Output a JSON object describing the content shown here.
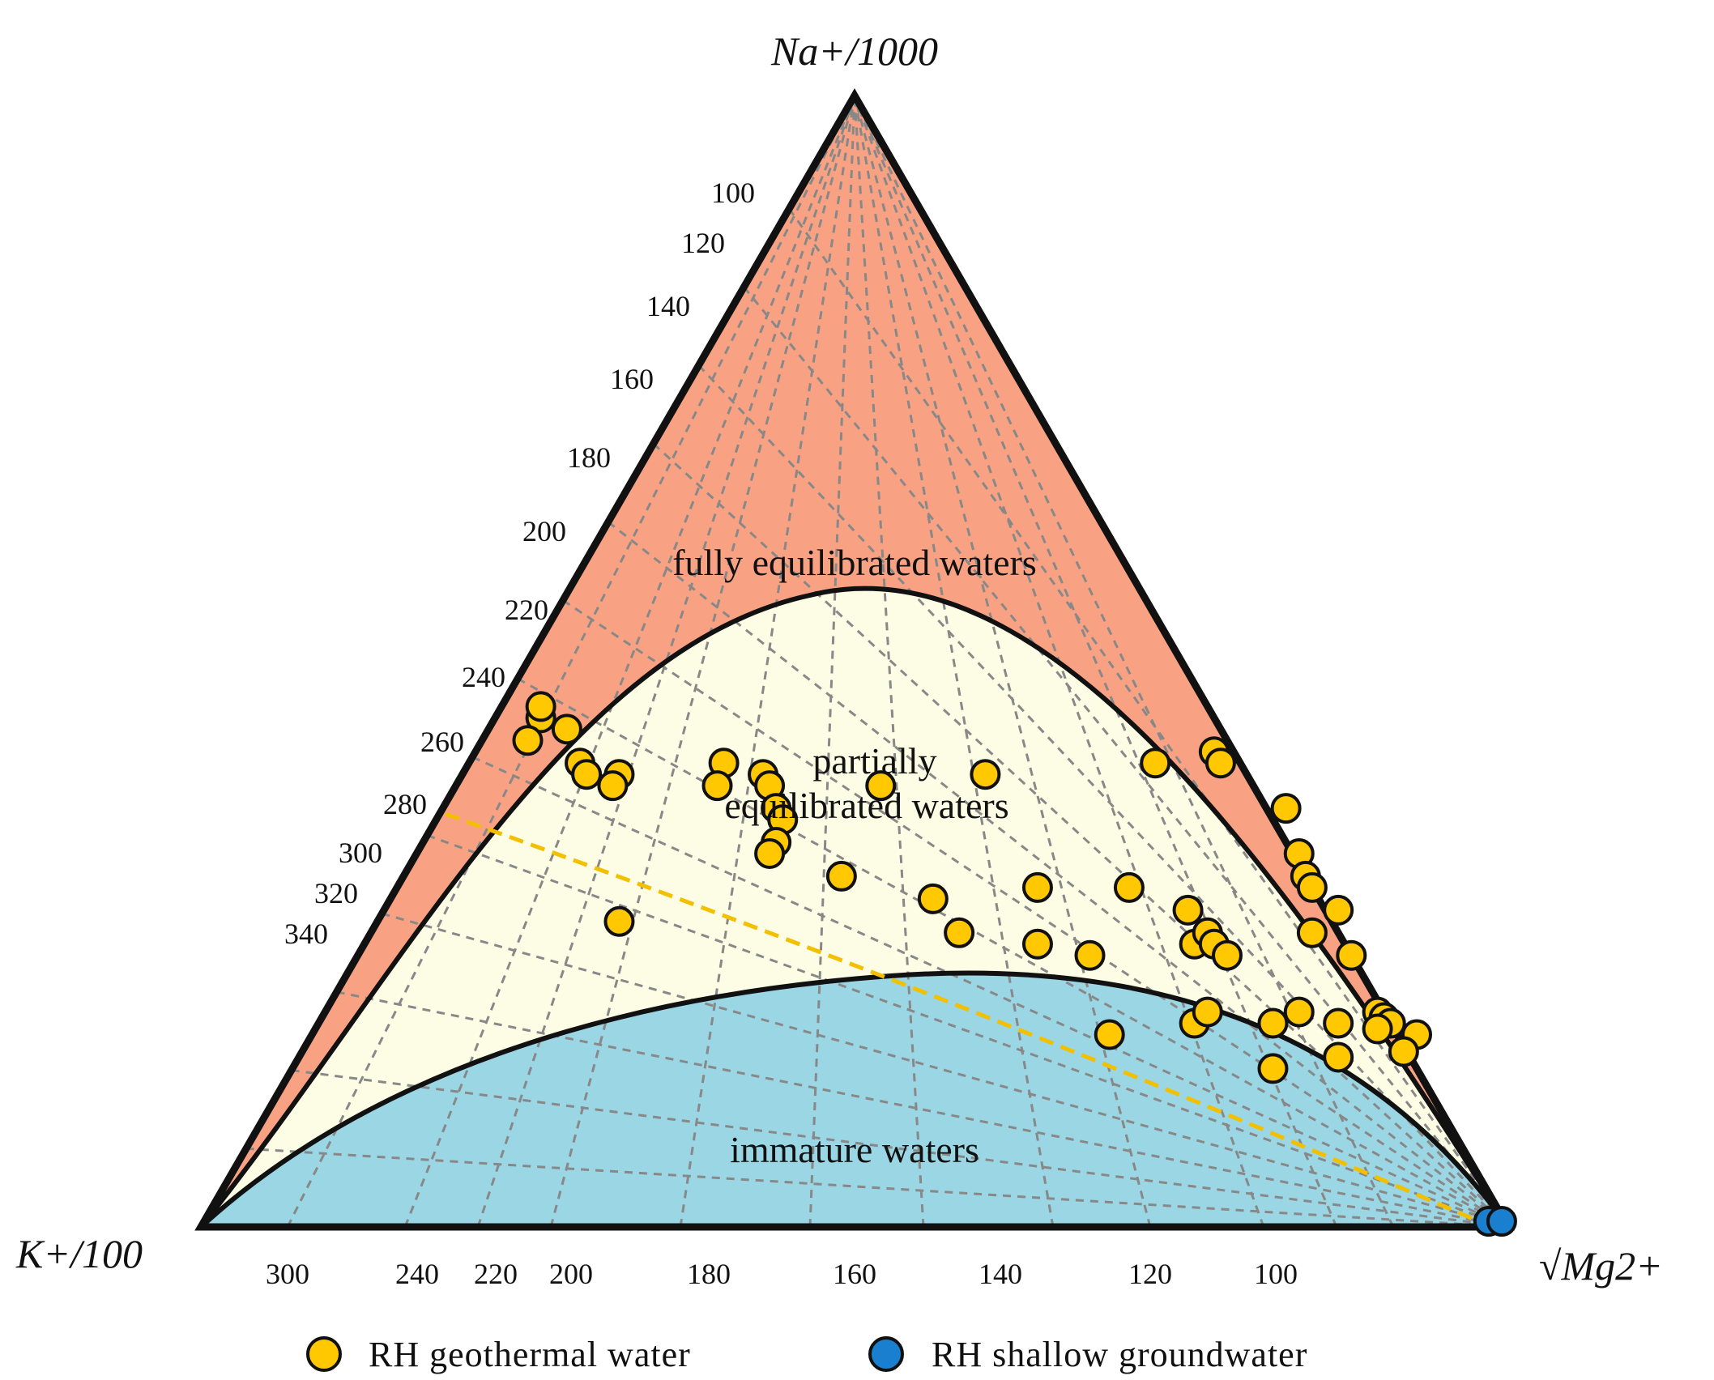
{
  "chart_data": {
    "type": "scatter",
    "subtype": "ternary Giggenbach Na-K-Mg diagram",
    "apex_labels": {
      "top": "Na+/1000",
      "left": "K+/100",
      "right": "√Mg2+"
    },
    "regions": [
      {
        "name": "fully equilibrated waters",
        "color": "#f8a283"
      },
      {
        "name": "partially equilibrated waters",
        "color": "#fdfde5"
      },
      {
        "name": "immature waters",
        "color": "#9ad6e4"
      }
    ],
    "left_edge_ticks": [
      "100",
      "120",
      "140",
      "160",
      "180",
      "200",
      "220",
      "240",
      "260",
      "280",
      "300",
      "320",
      "340"
    ],
    "bottom_edge_ticks": [
      "300",
      "240",
      "220",
      "200",
      "180",
      "160",
      "140",
      "120",
      "100"
    ],
    "series": [
      {
        "name": "RH geothermal water",
        "color": "#ffc800",
        "points_xy_fraction": [
          [
            0.26,
            0.55
          ],
          [
            0.26,
            0.54
          ],
          [
            0.25,
            0.57
          ],
          [
            0.28,
            0.56
          ],
          [
            0.29,
            0.59
          ],
          [
            0.295,
            0.6
          ],
          [
            0.32,
            0.6
          ],
          [
            0.315,
            0.61
          ],
          [
            0.4,
            0.59
          ],
          [
            0.395,
            0.61
          ],
          [
            0.43,
            0.6
          ],
          [
            0.435,
            0.61
          ],
          [
            0.44,
            0.63
          ],
          [
            0.445,
            0.64
          ],
          [
            0.44,
            0.66
          ],
          [
            0.435,
            0.67
          ],
          [
            0.52,
            0.61
          ],
          [
            0.6,
            0.6
          ],
          [
            0.73,
            0.59
          ],
          [
            0.775,
            0.58
          ],
          [
            0.78,
            0.59
          ],
          [
            0.83,
            0.63
          ],
          [
            0.84,
            0.67
          ],
          [
            0.845,
            0.69
          ],
          [
            0.85,
            0.7
          ],
          [
            0.87,
            0.72
          ],
          [
            0.85,
            0.74
          ],
          [
            0.88,
            0.76
          ],
          [
            0.32,
            0.73
          ],
          [
            0.49,
            0.69
          ],
          [
            0.56,
            0.71
          ],
          [
            0.58,
            0.74
          ],
          [
            0.64,
            0.7
          ],
          [
            0.64,
            0.75
          ],
          [
            0.68,
            0.76
          ],
          [
            0.71,
            0.7
          ],
          [
            0.755,
            0.72
          ],
          [
            0.76,
            0.75
          ],
          [
            0.77,
            0.74
          ],
          [
            0.775,
            0.75
          ],
          [
            0.785,
            0.76
          ],
          [
            0.76,
            0.82
          ],
          [
            0.77,
            0.81
          ],
          [
            0.695,
            0.83
          ],
          [
            0.82,
            0.82
          ],
          [
            0.84,
            0.81
          ],
          [
            0.87,
            0.82
          ],
          [
            0.9,
            0.81
          ],
          [
            0.905,
            0.815
          ],
          [
            0.91,
            0.82
          ],
          [
            0.9,
            0.825
          ],
          [
            0.93,
            0.83
          ],
          [
            0.92,
            0.845
          ],
          [
            0.87,
            0.85
          ],
          [
            0.82,
            0.86
          ]
        ]
      },
      {
        "name": "RH shallow groundwater",
        "color": "#1b7fcf",
        "points_xy_fraction": [
          [
            0.985,
            0.995
          ],
          [
            0.995,
            0.995
          ]
        ]
      }
    ],
    "legend": "bottom"
  }
}
